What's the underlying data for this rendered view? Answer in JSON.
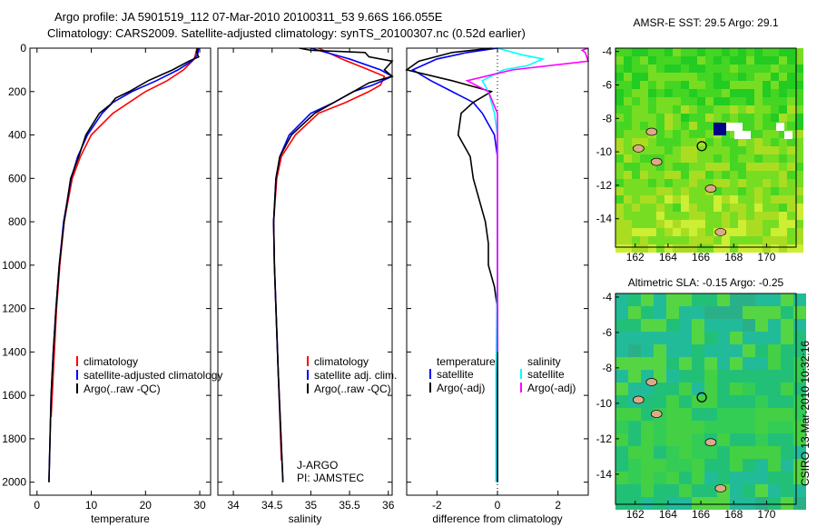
{
  "title": {
    "line1": "Argo profile: JA 5901519_112 07-Mar-2010 20100311_53 9.66S 166.055E",
    "line2": "Climatology: CARS2009. Satellite-adjusted climatology: synTS_20100307.nc (0.52d earlier)"
  },
  "footer": "CSIRO 13-Mar-2010 10:32:16",
  "colors": {
    "climatology": "#ff0000",
    "satellite": "#0000ff",
    "argo": "#000000",
    "sal_satellite": "#00ffff",
    "sal_argo": "#ff00ff"
  },
  "chart_data": [
    {
      "type": "line",
      "xlabel": "temperature",
      "ylabel": "",
      "xlim": [
        -1.3,
        32
      ],
      "ylim": [
        2060,
        0
      ],
      "xticks": [
        0,
        10,
        20,
        30
      ],
      "yticks": [
        0,
        200,
        400,
        600,
        800,
        1000,
        1200,
        1400,
        1600,
        1800,
        2000
      ],
      "legend": [
        "climatology",
        "satellite-adjusted climatology",
        "Argo(..raw -QC)"
      ],
      "series": [
        {
          "name": "climatology",
          "color": "#ff0000",
          "depth": [
            0,
            50,
            100,
            150,
            200,
            250,
            300,
            400,
            500,
            600,
            800,
            1000,
            1200,
            1400,
            1600,
            1700
          ],
          "x": [
            29.5,
            29,
            27,
            24,
            20,
            17,
            14,
            10,
            8,
            6.5,
            5,
            4.2,
            3.6,
            3.2,
            2.8,
            2.6
          ]
        },
        {
          "name": "satellite-adjusted climatology",
          "color": "#0000ff",
          "depth": [
            0,
            30,
            60,
            100,
            150,
            200,
            250,
            300,
            400,
            500,
            600,
            800,
            1000,
            1200,
            1400,
            1600,
            1800,
            2000
          ],
          "x": [
            29.8,
            29.6,
            28.5,
            26,
            22,
            17.5,
            14,
            12,
            9.3,
            7.5,
            6.3,
            4.9,
            4.1,
            3.5,
            3.0,
            2.6,
            2.4,
            2.2
          ]
        },
        {
          "name": "Argo(..raw -QC)",
          "color": "#000000",
          "depth": [
            0,
            20,
            40,
            60,
            100,
            150,
            200,
            230,
            260,
            300,
            400,
            500,
            600,
            800,
            1000,
            1200,
            1400,
            1600,
            1800,
            2000
          ],
          "x": [
            29.6,
            29.4,
            29.8,
            28,
            25,
            20.5,
            17,
            14.5,
            13.5,
            11.5,
            9,
            7.7,
            6.2,
            5,
            4.1,
            3.5,
            3.0,
            2.6,
            2.4,
            2.2
          ]
        }
      ]
    },
    {
      "type": "line",
      "xlabel": "salinity",
      "xlim": [
        33.8,
        36.05
      ],
      "ylim": [
        2060,
        0
      ],
      "xticks": [
        34,
        34.5,
        35,
        35.5,
        36
      ],
      "yticks": [
        0,
        200,
        400,
        600,
        800,
        1000,
        1200,
        1400,
        1600,
        1800,
        2000
      ],
      "legend": [
        "climatology",
        "satellite adj. clim.",
        "Argo(..raw -QC)"
      ],
      "annotation": [
        "J-ARGO",
        "PI: JAMSTEC"
      ],
      "series": [
        {
          "name": "climatology",
          "color": "#ff0000",
          "depth": [
            0,
            50,
            100,
            130,
            170,
            200,
            250,
            300,
            400,
            500,
            600,
            800,
            1000,
            1500,
            1900
          ],
          "x": [
            35.1,
            35.4,
            35.75,
            35.95,
            35.9,
            35.75,
            35.45,
            35.1,
            34.8,
            34.62,
            34.56,
            34.52,
            34.53,
            34.58,
            34.62
          ]
        },
        {
          "name": "satellite adj. clim.",
          "color": "#0000ff",
          "depth": [
            0,
            50,
            100,
            130,
            170,
            200,
            250,
            300,
            400,
            500,
            600,
            800,
            1000,
            1500,
            2000
          ],
          "x": [
            35.0,
            35.5,
            35.9,
            36.05,
            35.8,
            35.55,
            35.3,
            35.0,
            34.72,
            34.6,
            34.55,
            34.52,
            34.53,
            34.58,
            34.64
          ]
        },
        {
          "name": "Argo(..raw -QC)",
          "color": "#000000",
          "depth": [
            0,
            10,
            20,
            40,
            60,
            100,
            130,
            160,
            200,
            250,
            300,
            400,
            500,
            600,
            800,
            1000,
            1500,
            2000
          ],
          "x": [
            34.85,
            35.0,
            35.7,
            35.75,
            36.05,
            35.95,
            36.05,
            35.75,
            35.55,
            35.3,
            35.05,
            34.75,
            34.6,
            34.55,
            34.52,
            34.53,
            34.58,
            34.64
          ]
        }
      ]
    },
    {
      "type": "line",
      "xlabel": "difference from climatology",
      "xlim": [
        -3,
        3
      ],
      "ylim": [
        2060,
        0
      ],
      "xticks": [
        -2,
        0,
        2
      ],
      "yticks": [
        0,
        200,
        400,
        600,
        800,
        1000,
        1200,
        1400,
        1600,
        1800,
        2000
      ],
      "legend": {
        "temperature": [
          "satellite",
          "Argo(-adj)"
        ],
        "salinity": [
          "satellite",
          "Argo(-adj)"
        ],
        "temperature_title": "temperature",
        "salinity_title": "salinity"
      },
      "series": [
        {
          "name": "temperature satellite",
          "color": "#0000ff",
          "depth": [
            0,
            20,
            50,
            100,
            150,
            200,
            250,
            300,
            400,
            500,
            600,
            800,
            1000,
            1200,
            1400,
            1600,
            2000
          ],
          "x": [
            0,
            -1,
            -2,
            -2.8,
            -2.2,
            -1.5,
            -0.8,
            -0.5,
            -0.1,
            0,
            0,
            0,
            0,
            0,
            0,
            0,
            0
          ]
        },
        {
          "name": "temperature Argo(-adj)",
          "color": "#000000",
          "depth": [
            0,
            20,
            60,
            100,
            150,
            200,
            250,
            300,
            400,
            500,
            600,
            700,
            800,
            900,
            1000,
            1100,
            1200,
            1300,
            1400,
            1600,
            2000
          ],
          "x": [
            -0.2,
            -1.5,
            -2.6,
            -3,
            -1.5,
            -0.2,
            -0.8,
            -1.2,
            -1.3,
            -0.9,
            -0.8,
            -0.6,
            -0.4,
            -0.3,
            -0.3,
            -0.1,
            0,
            0,
            0,
            0,
            0
          ]
        },
        {
          "name": "salinity satellite",
          "color": "#00ffff",
          "depth": [
            0,
            30,
            50,
            80,
            100,
            150,
            200,
            300,
            400,
            600,
            1000,
            1500,
            2000
          ],
          "x": [
            0,
            0.8,
            1.5,
            1.0,
            0.2,
            -0.5,
            -0.3,
            -0.1,
            0,
            0,
            0,
            -0.05,
            -0.05
          ]
        },
        {
          "name": "salinity Argo(-adj)",
          "color": "#ff00ff",
          "depth": [
            0,
            10,
            20,
            60,
            100,
            150,
            200,
            300,
            500,
            800,
            1000,
            1400
          ],
          "x": [
            3,
            2.8,
            2.9,
            3,
            0.5,
            -1.0,
            -0.3,
            0,
            0,
            0,
            0,
            0
          ]
        }
      ]
    },
    {
      "type": "heatmap",
      "title": "AMSR-E SST: 29.5  Argo: 29.1",
      "xlim": [
        160.8,
        171.8
      ],
      "ylim": [
        -15.7,
        -3.8
      ],
      "xticks": [
        162,
        164,
        166,
        168,
        170
      ],
      "yticks": [
        -4,
        -6,
        -8,
        -10,
        -12,
        -14
      ],
      "marker": {
        "lon": 166.055,
        "lat": -9.66
      }
    },
    {
      "type": "heatmap",
      "title": "Altimetric SLA: -0.15  Argo: -0.25",
      "xlim": [
        160.8,
        171.8
      ],
      "ylim": [
        -15.7,
        -3.8
      ],
      "xticks": [
        162,
        164,
        166,
        168,
        170
      ],
      "yticks": [
        -4,
        -6,
        -8,
        -10,
        -12,
        -14
      ],
      "marker": {
        "lon": 166.055,
        "lat": -9.66
      }
    }
  ]
}
